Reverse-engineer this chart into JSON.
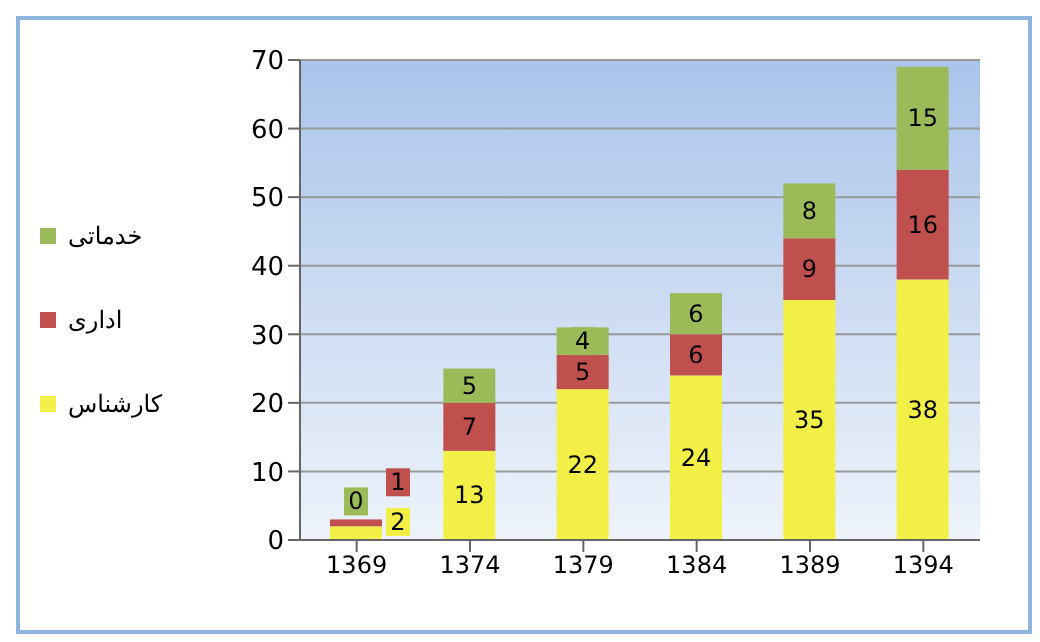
{
  "chart_data": {
    "type": "bar",
    "stacked": true,
    "categories": [
      "1369",
      "1374",
      "1379",
      "1384",
      "1389",
      "1394"
    ],
    "series": [
      {
        "name": "کارشناس",
        "color": "#f2f046",
        "values": [
          2,
          13,
          22,
          24,
          35,
          38
        ]
      },
      {
        "name": "اداری",
        "color": "#c0504d",
        "values": [
          1,
          7,
          5,
          6,
          9,
          16
        ]
      },
      {
        "name": "خدماتی",
        "color": "#9bbb59",
        "values": [
          0,
          5,
          4,
          6,
          8,
          15
        ]
      }
    ],
    "ylim": [
      0,
      70
    ],
    "yticks": [
      0,
      10,
      20,
      30,
      40,
      50,
      60,
      70
    ],
    "grid": "y",
    "legend": "left",
    "data_labels": true
  }
}
